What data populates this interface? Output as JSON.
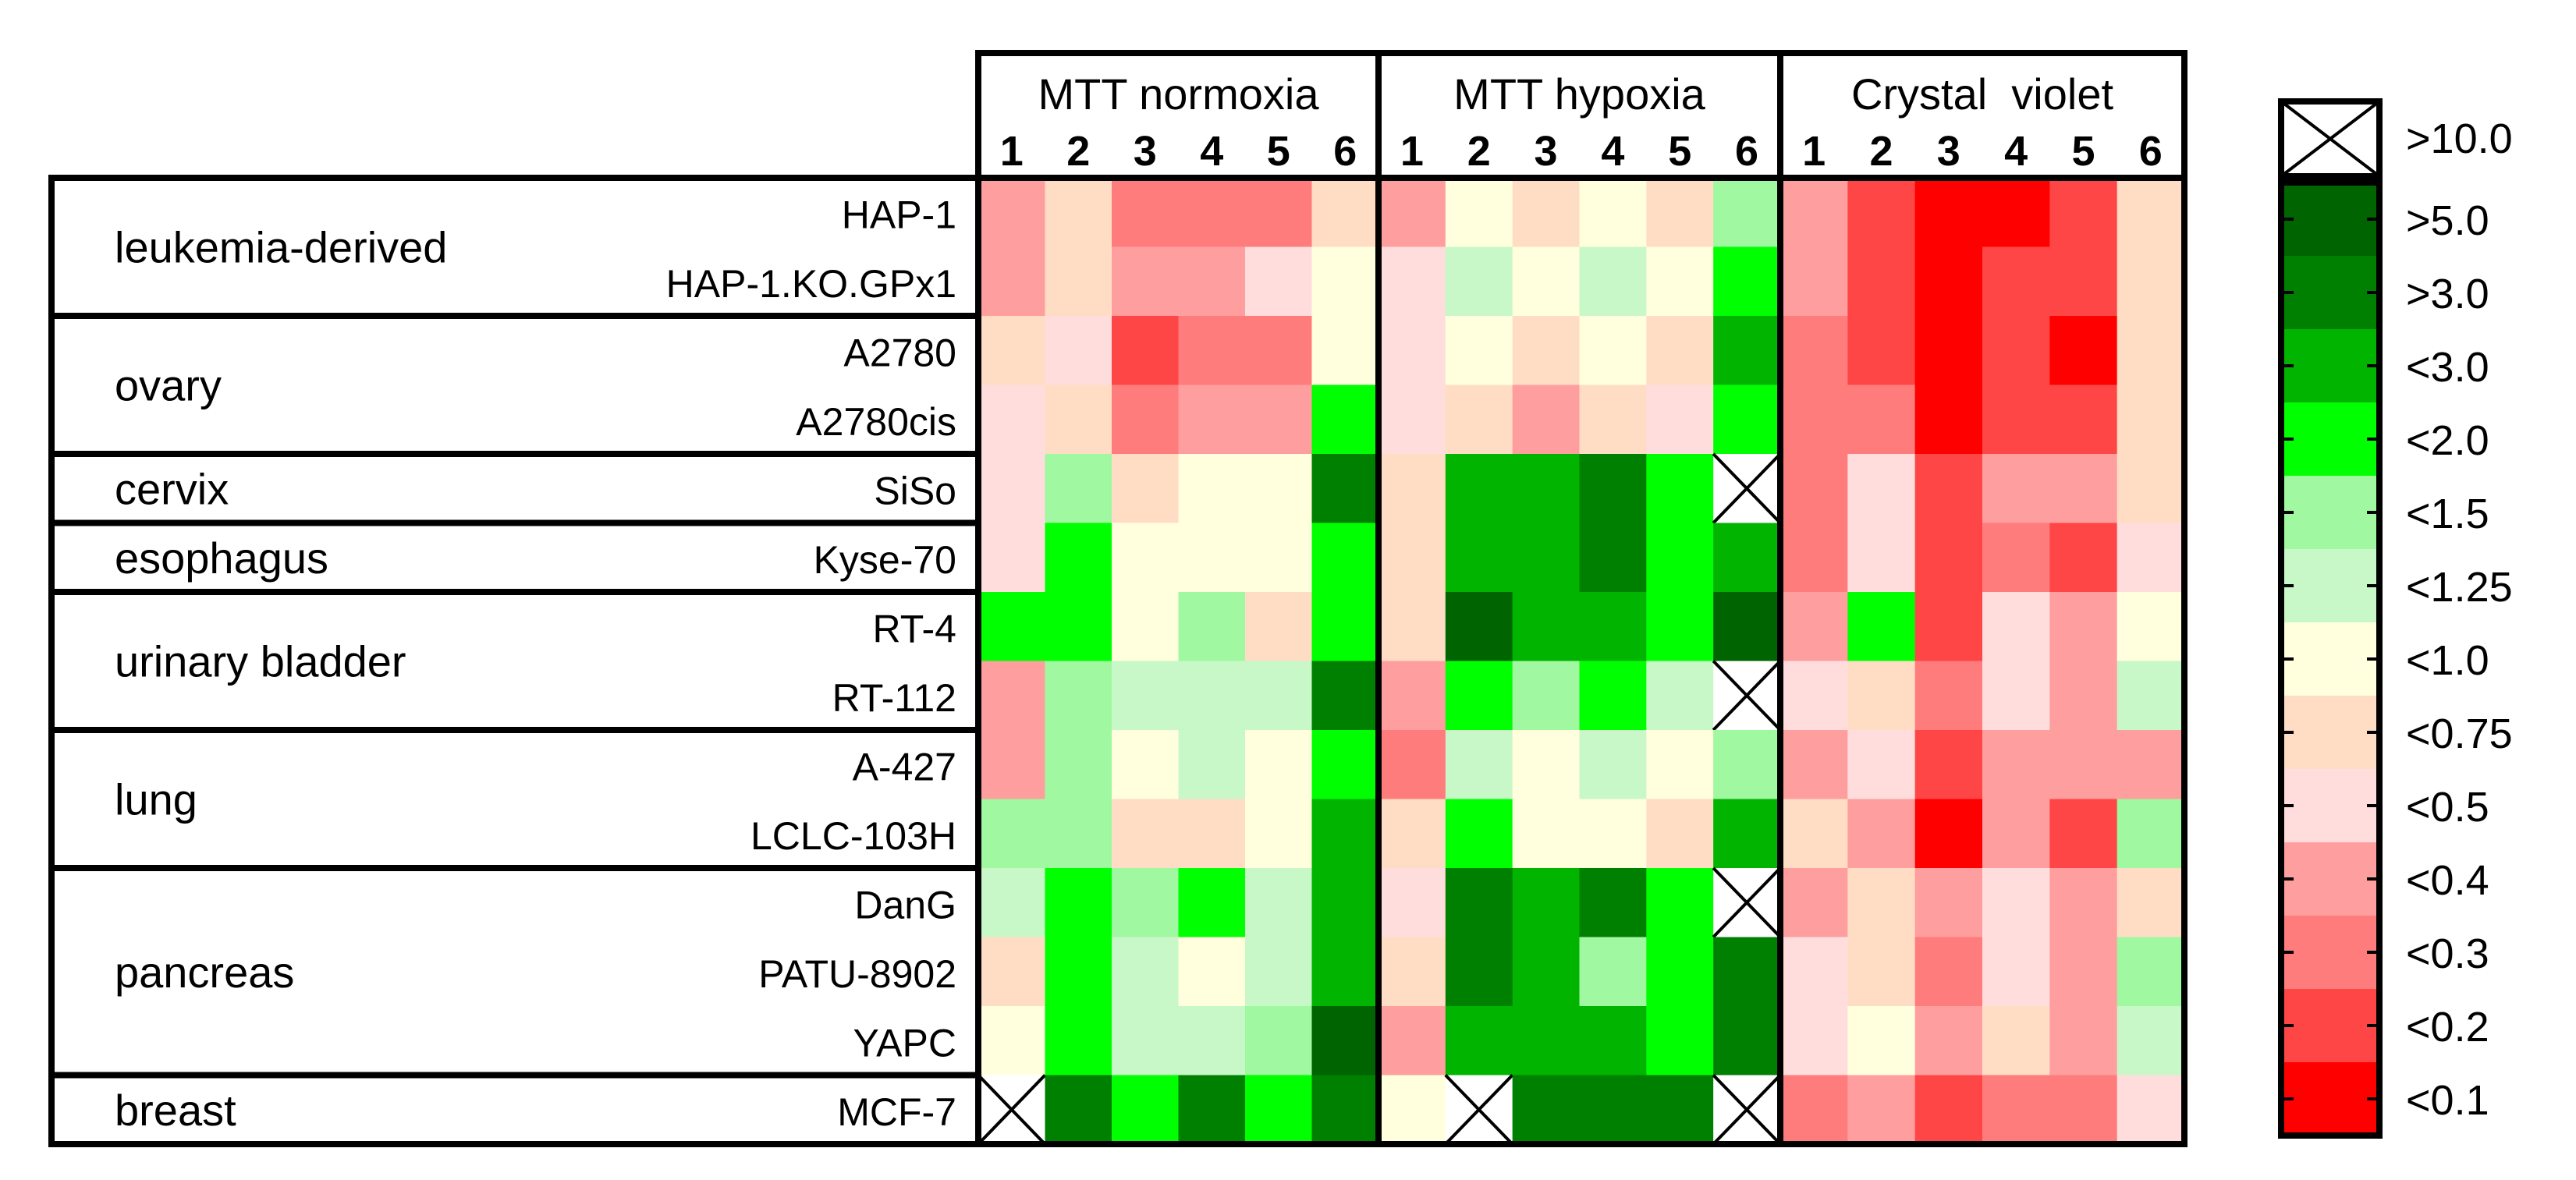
{
  "chart_data": {
    "type": "heatmap",
    "groups": [
      {
        "name": "leukemia-derived",
        "rows": [
          "HAP-1",
          "HAP-1.KO.GPx1"
        ]
      },
      {
        "name": "ovary",
        "rows": [
          "A2780",
          "A2780cis"
        ]
      },
      {
        "name": "cervix",
        "rows": [
          "SiSo"
        ]
      },
      {
        "name": "esophagus",
        "rows": [
          "Kyse-70"
        ]
      },
      {
        "name": "urinary bladder",
        "rows": [
          "RT-4",
          "RT-112"
        ]
      },
      {
        "name": "lung",
        "rows": [
          "A-427",
          "LCLC-103H"
        ]
      },
      {
        "name": "pancreas",
        "rows": [
          "DanG",
          "PATU-8902",
          "YAPC"
        ]
      },
      {
        "name": "breast",
        "rows": [
          "MCF-7"
        ]
      }
    ],
    "panels": [
      {
        "title": "MTT normoxia",
        "columns": [
          "1",
          "2",
          "3",
          "4",
          "5",
          "6"
        ]
      },
      {
        "title": "MTT hypoxia",
        "columns": [
          "1",
          "2",
          "3",
          "4",
          "5",
          "6"
        ]
      },
      {
        "title": "Crystal  violet",
        "columns": [
          "1",
          "2",
          "3",
          "4",
          "5",
          "6"
        ]
      }
    ],
    "legend": {
      "labels": [
        ">10.0",
        ">5.0",
        ">3.0",
        "<3.0",
        "<2.0",
        "<1.5",
        "<1.25",
        "<1.0",
        "<0.75",
        "<0.5",
        "<0.4",
        "<0.3",
        "<0.2",
        "<0.1"
      ],
      "colors": [
        "X",
        "#006400",
        "#008000",
        "#00B400",
        "#00FF00",
        "#A0F8A0",
        "#C8F8C8",
        "#FFFFDD",
        "#FFDDC4",
        "#FFDDDD",
        "#FF9E9E",
        "#FF7C7C",
        "#FF4646",
        "#FF0000"
      ]
    },
    "note": "Cell values are legend category indices: 0 = >10.0 (crossed box), 1 = >5.0 ... 13 = <0.1",
    "values": [
      [
        [
          10,
          8,
          11,
          11,
          11,
          8
        ],
        [
          10,
          7,
          8,
          7,
          8,
          5
        ],
        [
          10,
          12,
          13,
          13,
          12,
          8
        ]
      ],
      [
        [
          10,
          8,
          10,
          10,
          9,
          7
        ],
        [
          9,
          6,
          7,
          6,
          7,
          4
        ],
        [
          10,
          12,
          13,
          12,
          12,
          8
        ]
      ],
      [
        [
          8,
          9,
          12,
          11,
          11,
          7
        ],
        [
          9,
          7,
          8,
          7,
          8,
          3
        ],
        [
          11,
          12,
          13,
          12,
          13,
          8
        ]
      ],
      [
        [
          9,
          8,
          11,
          10,
          10,
          4
        ],
        [
          9,
          8,
          10,
          8,
          9,
          4
        ],
        [
          11,
          11,
          13,
          12,
          12,
          8
        ]
      ],
      [
        [
          9,
          5,
          8,
          7,
          7,
          2
        ],
        [
          8,
          3,
          3,
          2,
          4,
          0
        ],
        [
          11,
          9,
          12,
          10,
          10,
          8
        ]
      ],
      [
        [
          9,
          4,
          7,
          7,
          7,
          4
        ],
        [
          8,
          3,
          3,
          2,
          4,
          3
        ],
        [
          11,
          9,
          12,
          11,
          12,
          9
        ]
      ],
      [
        [
          4,
          4,
          7,
          5,
          8,
          4
        ],
        [
          8,
          1,
          3,
          3,
          4,
          1
        ],
        [
          10,
          4,
          12,
          9,
          10,
          7
        ]
      ],
      [
        [
          10,
          5,
          6,
          6,
          6,
          2
        ],
        [
          10,
          4,
          5,
          4,
          6,
          0
        ],
        [
          9,
          8,
          11,
          9,
          10,
          6
        ]
      ],
      [
        [
          10,
          5,
          7,
          6,
          7,
          4
        ],
        [
          11,
          6,
          7,
          6,
          7,
          5
        ],
        [
          10,
          9,
          12,
          10,
          10,
          10
        ]
      ],
      [
        [
          5,
          5,
          8,
          8,
          7,
          3
        ],
        [
          8,
          4,
          7,
          7,
          8,
          3
        ],
        [
          8,
          10,
          13,
          10,
          12,
          5
        ]
      ],
      [
        [
          6,
          4,
          5,
          4,
          6,
          3
        ],
        [
          9,
          2,
          3,
          2,
          4,
          0
        ],
        [
          10,
          8,
          10,
          9,
          10,
          8
        ]
      ],
      [
        [
          8,
          4,
          6,
          7,
          6,
          3
        ],
        [
          8,
          2,
          3,
          5,
          4,
          2
        ],
        [
          9,
          8,
          11,
          9,
          10,
          5
        ]
      ],
      [
        [
          7,
          4,
          6,
          6,
          5,
          1
        ],
        [
          10,
          3,
          3,
          3,
          4,
          2
        ],
        [
          9,
          7,
          10,
          8,
          10,
          6
        ]
      ],
      [
        [
          0,
          2,
          4,
          2,
          4,
          2
        ],
        [
          7,
          0,
          2,
          2,
          2,
          0
        ],
        [
          11,
          10,
          12,
          11,
          11,
          9
        ]
      ]
    ]
  }
}
